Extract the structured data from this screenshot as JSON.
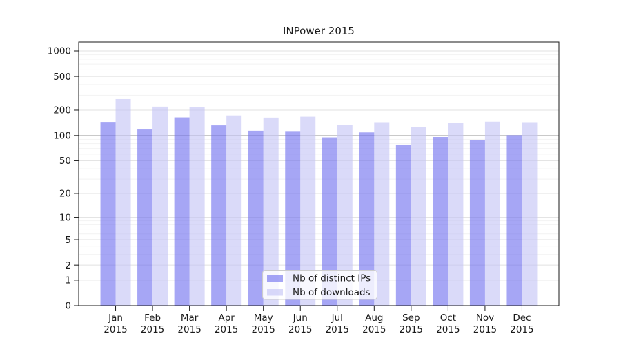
{
  "chart_data": {
    "type": "bar",
    "title": "INPower 2015",
    "categories": [
      "Jan 2015",
      "Feb 2015",
      "Mar 2015",
      "Apr 2015",
      "May 2015",
      "Jun 2015",
      "Jul 2015",
      "Aug 2015",
      "Sep 2015",
      "Oct 2015",
      "Nov 2015",
      "Dec 2015"
    ],
    "series": [
      {
        "name": "Nb of distinct IPs",
        "color": "rgba(112,112,239,0.62)",
        "values": [
          145,
          118,
          164,
          132,
          114,
          113,
          95,
          109,
          78,
          96,
          88,
          101
        ]
      },
      {
        "name": "Nb of downloads",
        "color": "rgba(196,196,246,0.62)",
        "values": [
          270,
          220,
          217,
          173,
          163,
          167,
          134,
          144,
          127,
          140,
          146,
          144
        ]
      }
    ],
    "yscale": "log(1+y)",
    "y_ticks": [
      0,
      1,
      2,
      5,
      10,
      20,
      50,
      100,
      200,
      500,
      1000
    ],
    "y_minor_ticks": [
      3,
      4,
      6,
      7,
      8,
      9,
      30,
      40,
      60,
      70,
      80,
      90,
      300,
      400,
      600,
      700,
      800,
      900
    ],
    "ylim": [
      0,
      1280
    ],
    "xlabel": "",
    "ylabel": "",
    "grid": true,
    "legend": {
      "position": "lower-center",
      "background": "rgba(255,255,255,0.8)",
      "border_color": "#cccccc"
    },
    "colors": {
      "text": "#1a1a1a",
      "spine": "#1a1a1a",
      "grid_major": "#e0e0e0",
      "grid_minor": "#f2f2f2",
      "grid_emphasis_value": 100,
      "grid_emphasis": "#a9a9a9"
    }
  }
}
